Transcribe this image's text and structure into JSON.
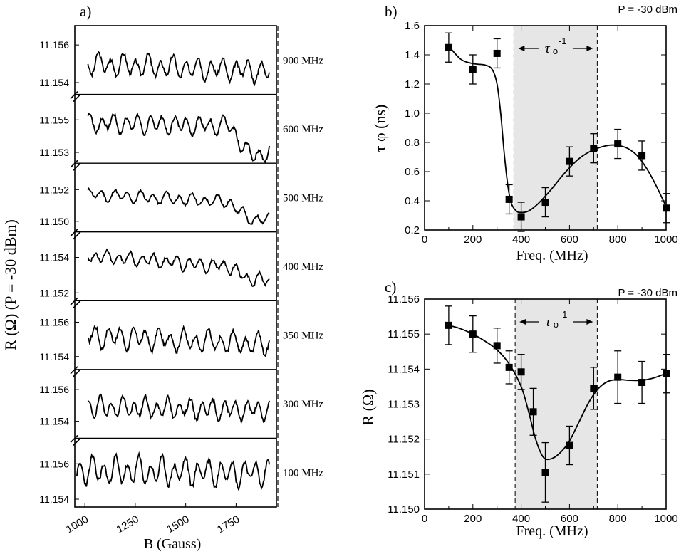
{
  "panel_a": {
    "label": "a)",
    "ylabel": "R (Ω) (P = -30 dBm)",
    "xlabel": "B (Gauss)",
    "xlim": [
      950,
      1950
    ],
    "xticks": [
      "1000",
      "1250",
      "1500",
      "1750"
    ],
    "xtick_values": [
      1000,
      1250,
      1500,
      1750
    ],
    "rows": [
      {
        "freq_label": "900 MHz",
        "ticks": [
          "11.156",
          "11.154"
        ],
        "tick_values": [
          11.156,
          11.154
        ],
        "ylim": [
          11.1536,
          11.1568
        ],
        "base": 11.155,
        "amp": 0.00045,
        "drift": -0.0004,
        "drop": 0.0,
        "period": 62,
        "phase": 0.3,
        "seed": 3,
        "start": 1015
      },
      {
        "freq_label": "600 MHz",
        "ticks": [
          "11.155",
          "11.153"
        ],
        "tick_values": [
          11.155,
          11.153
        ],
        "ylim": [
          11.1526,
          11.1563
        ],
        "base": 11.1548,
        "amp": 0.00045,
        "drift": -0.0002,
        "drop": -0.0017,
        "period": 60,
        "phase": 1.1,
        "seed": 7,
        "start": 1015
      },
      {
        "freq_label": "500 MHz",
        "ticks": [
          "11.152",
          "11.150"
        ],
        "tick_values": [
          11.152,
          11.15
        ],
        "ylim": [
          11.1496,
          11.1534
        ],
        "base": 11.1517,
        "amp": 0.0003,
        "drift": -0.0006,
        "drop": -0.001,
        "period": 64,
        "phase": 2.0,
        "seed": 11,
        "start": 1015
      },
      {
        "freq_label": "400 MHz",
        "ticks": [
          "11.154",
          "11.152"
        ],
        "tick_values": [
          11.154,
          11.152
        ],
        "ylim": [
          11.1518,
          11.1552
        ],
        "base": 11.1541,
        "amp": 0.0003,
        "drift": -0.0008,
        "drop": -0.0006,
        "period": 58,
        "phase": 0.7,
        "seed": 13,
        "start": 1015
      },
      {
        "freq_label": "350 MHz",
        "ticks": [
          "11.156",
          "11.154"
        ],
        "tick_values": [
          11.156,
          11.154
        ],
        "ylim": [
          11.1535,
          11.157
        ],
        "base": 11.1552,
        "amp": 0.0005,
        "drift": -0.0005,
        "drop": 0.0,
        "period": 62,
        "phase": 1.6,
        "seed": 17,
        "start": 1015
      },
      {
        "freq_label": "300 MHz",
        "ticks": [
          "11.156",
          "11.154"
        ],
        "tick_values": [
          11.156,
          11.154
        ],
        "ylim": [
          11.1532,
          11.157
        ],
        "base": 11.1549,
        "amp": 0.0005,
        "drift": -0.0002,
        "drop": 0.0,
        "period": 56,
        "phase": 0.2,
        "seed": 19,
        "start": 1015
      },
      {
        "freq_label": "100 MHz",
        "ticks": [
          "11.156",
          "11.154"
        ],
        "tick_values": [
          11.156,
          11.154
        ],
        "ylim": [
          11.1538,
          11.1572
        ],
        "base": 11.1556,
        "amp": 0.0006,
        "drift": -0.0001,
        "drop": 0.0,
        "period": 58,
        "phase": 2.4,
        "seed": 23,
        "start": 960
      }
    ]
  },
  "chart_data": [
    {
      "type": "scatter",
      "panel": "b)",
      "title": "P = -30 dBm",
      "xlabel": "Freq. (MHz)",
      "ylabel": "τ φ  (ns)",
      "xlim": [
        0,
        1000
      ],
      "ylim": [
        0.2,
        1.6
      ],
      "xticks": [
        0,
        200,
        400,
        600,
        800,
        1000
      ],
      "yticks": [
        0.2,
        0.4,
        0.6,
        0.8,
        1.0,
        1.2,
        1.4,
        1.6
      ],
      "ytick_labels": [
        "0.2",
        "0.4",
        "0.6",
        "0.8",
        "1.0",
        "1.2",
        "1.4",
        "1.6"
      ],
      "x": [
        100,
        200,
        300,
        350,
        400,
        500,
        600,
        700,
        800,
        900,
        1000
      ],
      "y": [
        1.45,
        1.3,
        1.41,
        0.41,
        0.29,
        0.39,
        0.67,
        0.76,
        0.79,
        0.71,
        0.35
      ],
      "yerr": [
        0.1,
        0.1,
        0.1,
        0.1,
        0.1,
        0.1,
        0.1,
        0.1,
        0.1,
        0.1,
        0.1
      ],
      "fit": {
        "x": [
          100,
          150,
          200,
          250,
          280,
          300,
          315,
          330,
          345,
          360,
          380,
          400,
          430,
          470,
          520,
          580,
          640,
          700,
          760,
          800,
          840,
          880,
          920,
          960,
          1000
        ],
        "y": [
          1.46,
          1.37,
          1.34,
          1.33,
          1.3,
          1.2,
          1.0,
          0.72,
          0.5,
          0.38,
          0.33,
          0.32,
          0.33,
          0.38,
          0.47,
          0.59,
          0.69,
          0.75,
          0.78,
          0.78,
          0.76,
          0.71,
          0.62,
          0.5,
          0.36
        ]
      },
      "shaded_band": [
        370,
        715
      ],
      "band_label_base": "τ",
      "band_label_sub": "o",
      "band_label_sup": "-1"
    },
    {
      "type": "scatter",
      "panel": "c)",
      "title": "P = -30 dBm",
      "xlabel": "Freq. (MHz)",
      "ylabel": "R (Ω)",
      "xlim": [
        0,
        1000
      ],
      "ylim": [
        11.15,
        11.156
      ],
      "xticks": [
        0,
        200,
        400,
        600,
        800,
        1000
      ],
      "yticks": [
        11.15,
        11.151,
        11.152,
        11.153,
        11.154,
        11.155,
        11.156
      ],
      "ytick_labels": [
        "11.150",
        "11.151",
        "11.152",
        "11.153",
        "11.154",
        "11.155",
        "11.156"
      ],
      "x": [
        100,
        200,
        300,
        350,
        400,
        450,
        500,
        600,
        700,
        800,
        900,
        1000
      ],
      "y": [
        11.15525,
        11.155,
        11.15467,
        11.15405,
        11.15392,
        11.15278,
        11.15105,
        11.15182,
        11.15345,
        11.15377,
        11.15362,
        11.15387
      ],
      "yerr": [
        0.00055,
        0.00052,
        0.0005,
        0.00047,
        0.0005,
        0.00067,
        0.00085,
        0.00055,
        0.0006,
        0.00075,
        0.0006,
        0.00055
      ],
      "fit": {
        "x": [
          100,
          150,
          200,
          250,
          300,
          350,
          400,
          430,
          460,
          490,
          520,
          560,
          600,
          640,
          680,
          720,
          760,
          800,
          850,
          900,
          950,
          1000
        ],
        "y": [
          11.15525,
          11.15515,
          11.155,
          11.1548,
          11.15455,
          11.15415,
          11.1535,
          11.1528,
          11.152,
          11.1515,
          11.15143,
          11.1516,
          11.15195,
          11.1525,
          11.15305,
          11.15345,
          11.15365,
          11.1537,
          11.15368,
          11.15368,
          11.15375,
          11.15388
        ]
      },
      "shaded_band": [
        375,
        715
      ],
      "band_label_base": "τ",
      "band_label_sub": "o",
      "band_label_sup": "-1"
    }
  ]
}
